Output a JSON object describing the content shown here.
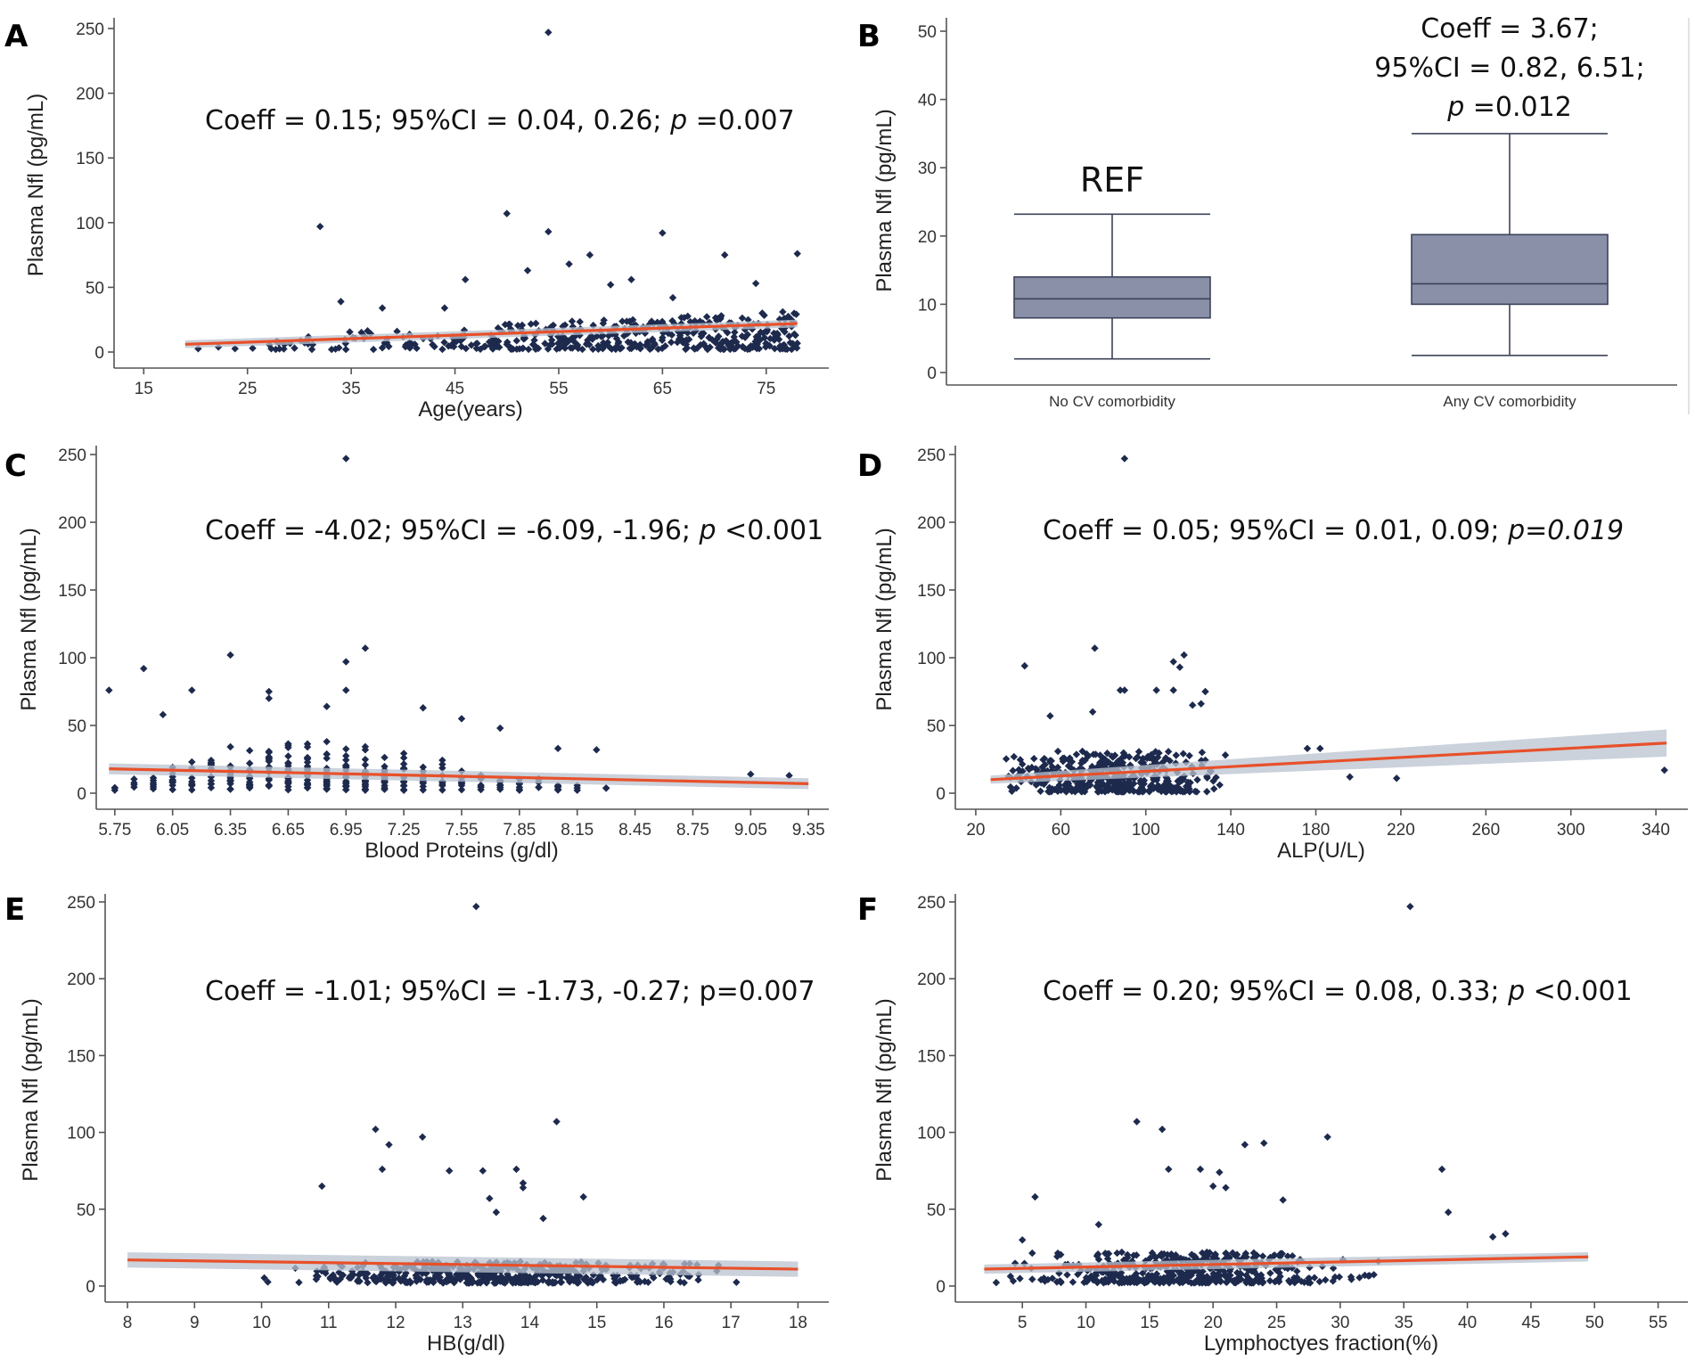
{
  "colors": {
    "point": "#1d2a4d",
    "fit_line": "#e8502a",
    "ci_band": "#b9c3d0",
    "box_fill": "#8a90a8",
    "box_stroke": "#3c4359",
    "axis": "#555555"
  },
  "chart_data": [
    {
      "panel": "A",
      "type": "scatter",
      "xlabel": "Age(years)",
      "ylabel": "Plasma Nfl (pg/mL)",
      "xticks": [
        15,
        25,
        35,
        45,
        55,
        65,
        75
      ],
      "yticks": [
        0,
        50,
        100,
        150,
        200,
        250
      ],
      "xlim": [
        13,
        80
      ],
      "ylim": [
        0,
        250
      ],
      "annotation": {
        "pre": "Coeff = 0.15; 95%CI = 0.04, 0.26; ",
        "p": "p",
        "post": " =0.007"
      },
      "fit": {
        "x": [
          19,
          78
        ],
        "y": [
          6,
          22
        ],
        "ci": 3
      },
      "outliers": [
        [
          54,
          247
        ],
        [
          50,
          107
        ],
        [
          32,
          97
        ],
        [
          54,
          93
        ],
        [
          65,
          92
        ],
        [
          58,
          75
        ],
        [
          71,
          75
        ],
        [
          78,
          76
        ],
        [
          52,
          63
        ],
        [
          56,
          68
        ],
        [
          46,
          56
        ],
        [
          62,
          56
        ],
        [
          74,
          53
        ],
        [
          34,
          39
        ],
        [
          60,
          52
        ],
        [
          38,
          34
        ],
        [
          44,
          34
        ],
        [
          66,
          42
        ]
      ],
      "bulk": {
        "xmin": 19,
        "xmax": 78,
        "base": 2,
        "spread0": 8,
        "spread1": 30,
        "count": 440,
        "seed": 11
      }
    },
    {
      "panel": "B",
      "type": "box",
      "ylabel": "Plasma Nfl (pg/mL)",
      "yticks": [
        0,
        10,
        20,
        30,
        40,
        50
      ],
      "ylim": [
        -1,
        52
      ],
      "categories": [
        "No CV comorbidity",
        "Any CV comorbidity"
      ],
      "boxes": [
        {
          "whisker_low": 2,
          "q1": 8,
          "median": 10.8,
          "q3": 14,
          "whisker_high": 23.2
        },
        {
          "whisker_low": 2.5,
          "q1": 10,
          "median": 13,
          "q3": 20.2,
          "whisker_high": 35
        }
      ],
      "ref_label": "REF",
      "annotation_lines": [
        "Coeff = 3.67;",
        "95%CI = 0.82, 6.51;"
      ],
      "annotation_p": {
        "p": "p",
        "post": " =0.012"
      }
    },
    {
      "panel": "C",
      "type": "scatter",
      "xlabel": "Blood Proteins (g/dl)",
      "ylabel": "Plasma Nfl (pg/mL)",
      "xticks": [
        "5.75",
        "6.05",
        "6.35",
        "6.65",
        "6.95",
        "7.25",
        "7.55",
        "7.85",
        "8.15",
        "8.45",
        "8.75",
        "9.05",
        "9.35"
      ],
      "yticks": [
        0,
        50,
        100,
        150,
        200,
        250
      ],
      "xlim": [
        5.7,
        9.4
      ],
      "ylim": [
        0,
        250
      ],
      "annotation": {
        "pre": "Coeff = -4.02; 95%CI = -6.09, -1.96; ",
        "p": "p",
        "post": " <0.001"
      },
      "fit": {
        "x": [
          5.72,
          9.35
        ],
        "y": [
          18,
          7
        ],
        "ci": 4
      },
      "outliers": [
        [
          6.95,
          247
        ],
        [
          7.05,
          107
        ],
        [
          6.35,
          102
        ],
        [
          6.95,
          97
        ],
        [
          5.72,
          76
        ],
        [
          5.9,
          92
        ],
        [
          6.15,
          76
        ],
        [
          6.55,
          75
        ],
        [
          6.55,
          70
        ],
        [
          6.85,
          64
        ],
        [
          6.95,
          76
        ],
        [
          6.0,
          58
        ],
        [
          7.35,
          63
        ],
        [
          7.55,
          55
        ],
        [
          7.75,
          48
        ],
        [
          8.05,
          33
        ],
        [
          8.25,
          32
        ],
        [
          9.05,
          14
        ],
        [
          9.25,
          13
        ]
      ],
      "bulk": {
        "columns": [
          5.75,
          5.85,
          5.95,
          6.05,
          6.15,
          6.25,
          6.35,
          6.45,
          6.55,
          6.65,
          6.75,
          6.85,
          6.95,
          7.05,
          7.15,
          7.25,
          7.35,
          7.45,
          7.55,
          7.65,
          7.75,
          7.85,
          7.95,
          8.05,
          8.15,
          8.3
        ],
        "heights": [
          12,
          14,
          22,
          28,
          22,
          30,
          36,
          38,
          36,
          40,
          38,
          38,
          38,
          36,
          30,
          30,
          28,
          24,
          22,
          22,
          18,
          16,
          14,
          14,
          10,
          8
        ],
        "counts": [
          3,
          4,
          6,
          10,
          8,
          12,
          16,
          16,
          18,
          20,
          20,
          20,
          20,
          18,
          14,
          14,
          12,
          10,
          9,
          8,
          7,
          6,
          5,
          5,
          3,
          2
        ]
      }
    },
    {
      "panel": "D",
      "type": "scatter",
      "xlabel": "ALP(U/L)",
      "ylabel": "Plasma Nfl (pg/mL)",
      "xticks": [
        20,
        60,
        100,
        140,
        180,
        220,
        260,
        300,
        340
      ],
      "yticks": [
        0,
        50,
        100,
        150,
        200,
        250
      ],
      "xlim": [
        15,
        350
      ],
      "ylim": [
        0,
        250
      ],
      "annotation": {
        "pre": "Coeff = 0.05; 95%CI = 0.01, 0.09; ",
        "p": "p=0.019",
        "post": ""
      },
      "fit": {
        "x": [
          27,
          345
        ],
        "y": [
          10,
          37
        ],
        "ci_start": 3,
        "ci_end": 10
      },
      "outliers": [
        [
          90,
          247
        ],
        [
          76,
          107
        ],
        [
          118,
          102
        ],
        [
          113,
          97
        ],
        [
          116,
          93
        ],
        [
          43,
          94
        ],
        [
          88,
          76
        ],
        [
          90,
          76
        ],
        [
          105,
          76
        ],
        [
          113,
          76
        ],
        [
          128,
          75
        ],
        [
          122,
          65
        ],
        [
          126,
          66
        ],
        [
          55,
          57
        ],
        [
          75,
          60
        ],
        [
          176,
          33
        ],
        [
          182,
          33
        ],
        [
          196,
          12
        ],
        [
          218,
          11
        ],
        [
          344,
          17
        ]
      ],
      "bulk": {
        "xmin": 30,
        "xmax": 140,
        "base": 1,
        "spread0": 30,
        "spread1": 30,
        "count": 420,
        "seed": 23
      }
    },
    {
      "panel": "E",
      "type": "scatter",
      "xlabel": "HB(g/dl)",
      "ylabel": "Plasma Nfl (pg/mL)",
      "xticks": [
        8,
        9,
        10,
        11,
        12,
        13,
        14,
        15,
        16,
        17,
        18
      ],
      "yticks": [
        0,
        50,
        100,
        150,
        200,
        250
      ],
      "xlim": [
        7.8,
        18.3
      ],
      "ylim": [
        0,
        250
      ],
      "annotation": {
        "pre": "Coeff = -1.01; 95%CI = -1.73, -0.27; p=0.007",
        "p": "",
        "post": ""
      },
      "fit": {
        "x": [
          8,
          18
        ],
        "y": [
          17,
          11
        ],
        "ci": 5
      },
      "outliers": [
        [
          13.2,
          247
        ],
        [
          14.4,
          107
        ],
        [
          11.7,
          102
        ],
        [
          12.4,
          97
        ],
        [
          11.9,
          92
        ],
        [
          11.8,
          76
        ],
        [
          12.8,
          75
        ],
        [
          13.3,
          75
        ],
        [
          13.8,
          76
        ],
        [
          13.9,
          67
        ],
        [
          13.9,
          64
        ],
        [
          10.9,
          65
        ],
        [
          14.8,
          58
        ],
        [
          13.4,
          57
        ],
        [
          13.5,
          48
        ],
        [
          14.2,
          44
        ]
      ],
      "bulk": {
        "xmin": 8.1,
        "xmax": 17.9,
        "base": 2,
        "spread0": 14,
        "spread1": 14,
        "count": 470,
        "seed": 37,
        "center": 13.5,
        "width": 2.6
      }
    },
    {
      "panel": "F",
      "type": "scatter",
      "xlabel": "Lymphoctyes fraction(%)",
      "ylabel": "Plasma Nfl (pg/mL)",
      "xticks": [
        5,
        10,
        15,
        20,
        25,
        30,
        35,
        40,
        45,
        50,
        55
      ],
      "yticks": [
        0,
        50,
        100,
        150,
        200,
        250
      ],
      "xlim": [
        0.5,
        56.5
      ],
      "ylim": [
        0,
        250
      ],
      "annotation": {
        "pre": "Coeff = 0.20; 95%CI = 0.08, 0.33; ",
        "p": "p",
        "post": " <0.001"
      },
      "fit": {
        "x": [
          2,
          49.5
        ],
        "y": [
          11,
          19
        ],
        "ci": 3
      },
      "outliers": [
        [
          35.5,
          247
        ],
        [
          14,
          107
        ],
        [
          16,
          102
        ],
        [
          29,
          97
        ],
        [
          22.5,
          92
        ],
        [
          24,
          93
        ],
        [
          16.5,
          76
        ],
        [
          19,
          76
        ],
        [
          20.5,
          74
        ],
        [
          38,
          76
        ],
        [
          20,
          65
        ],
        [
          21,
          64
        ],
        [
          6,
          58
        ],
        [
          25.5,
          56
        ],
        [
          38.5,
          48
        ],
        [
          43,
          34
        ],
        [
          42,
          32
        ],
        [
          11,
          40
        ],
        [
          5,
          30
        ]
      ],
      "bulk": {
        "xmin": 2.5,
        "xmax": 49.5,
        "base": 2,
        "spread0": 20,
        "spread1": 20,
        "count": 480,
        "seed": 53,
        "center": 18,
        "width": 11
      }
    }
  ],
  "panel_labels": [
    "A",
    "B",
    "C",
    "D",
    "E",
    "F"
  ]
}
